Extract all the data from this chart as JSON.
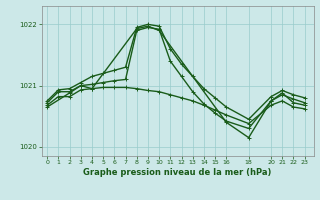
{
  "bg_color": "#cce8e8",
  "grid_color": "#99cccc",
  "line_color": "#1a5c1a",
  "title": "Graphe pression niveau de la mer (hPa)",
  "ylim": [
    1019.85,
    1022.3
  ],
  "yticks": [
    1020,
    1021,
    1022
  ],
  "xticks": [
    0,
    1,
    2,
    3,
    4,
    5,
    6,
    7,
    8,
    9,
    10,
    11,
    12,
    13,
    14,
    15,
    16,
    18,
    20,
    21,
    22,
    23
  ],
  "xlim": [
    -0.5,
    23.8
  ],
  "series": [
    {
      "x": [
        0,
        1,
        2,
        3,
        4,
        5,
        6,
        7,
        8,
        9,
        10,
        11,
        12,
        13,
        14,
        15,
        16,
        18,
        20,
        21,
        22,
        23
      ],
      "y": [
        1020.75,
        1020.93,
        1020.95,
        1021.05,
        1021.15,
        1021.2,
        1021.25,
        1021.3,
        1021.95,
        1022.0,
        1021.97,
        1021.6,
        1021.35,
        1021.15,
        1020.95,
        1020.8,
        1020.65,
        1020.45,
        1020.82,
        1020.92,
        1020.85,
        1020.8
      ],
      "lw": 1.0
    },
    {
      "x": [
        0,
        1,
        2,
        3,
        4,
        5,
        6,
        7,
        8,
        9,
        10,
        11,
        12,
        13,
        14,
        15,
        16,
        18,
        20,
        21,
        22,
        23
      ],
      "y": [
        1020.72,
        1020.9,
        1020.9,
        1021.0,
        1021.02,
        1021.05,
        1021.08,
        1021.1,
        1021.9,
        1021.95,
        1021.92,
        1021.4,
        1021.15,
        1020.9,
        1020.7,
        1020.55,
        1020.42,
        1020.3,
        1020.75,
        1020.85,
        1020.78,
        1020.72
      ],
      "lw": 1.0
    },
    {
      "x": [
        0,
        1,
        2,
        3,
        4,
        5,
        6,
        7,
        8,
        9,
        10,
        11,
        12,
        13,
        14,
        15,
        16,
        18,
        20,
        21,
        22,
        23
      ],
      "y": [
        1020.68,
        1020.82,
        1020.82,
        1020.93,
        1020.95,
        1020.97,
        1020.97,
        1020.97,
        1020.95,
        1020.92,
        1020.9,
        1020.85,
        1020.8,
        1020.75,
        1020.68,
        1020.6,
        1020.52,
        1020.38,
        1020.68,
        1020.75,
        1020.65,
        1020.62
      ],
      "lw": 1.0
    },
    {
      "x": [
        0,
        2,
        3,
        4,
        8,
        9,
        10,
        16,
        18,
        20,
        21,
        22,
        23
      ],
      "y": [
        1020.65,
        1020.88,
        1021.0,
        1020.95,
        1021.93,
        1021.97,
        1021.9,
        1020.4,
        1020.15,
        1020.75,
        1020.88,
        1020.72,
        1020.68
      ],
      "lw": 1.0
    }
  ]
}
